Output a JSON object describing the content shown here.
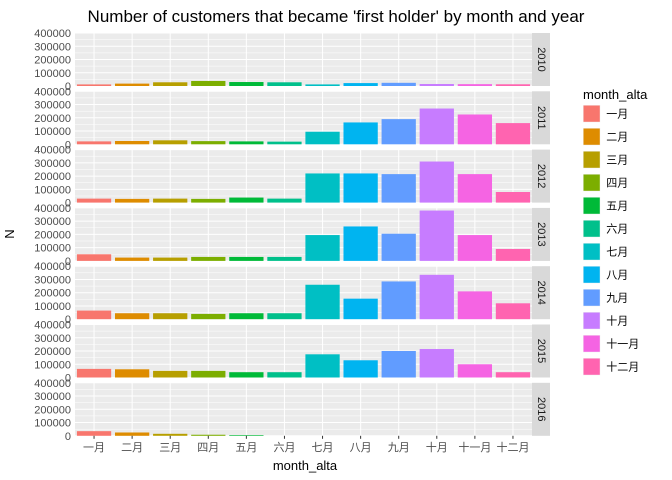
{
  "chart_data": {
    "type": "bar",
    "title": "Number of customers that became 'first holder' by month and year",
    "xlabel": "month_alta",
    "ylabel": "N",
    "categories": [
      "一月",
      "二月",
      "三月",
      "四月",
      "五月",
      "六月",
      "七月",
      "八月",
      "九月",
      "十月",
      "十一月",
      "十二月"
    ],
    "ylim": [
      0,
      400000
    ],
    "yticks": [
      "0",
      "100000",
      "200000",
      "300000",
      "400000"
    ],
    "legend": {
      "title": "month_alta",
      "placement": "right",
      "colors": [
        "#F8766D",
        "#DE8C00",
        "#B79F00",
        "#7CAE00",
        "#00BA38",
        "#00C08B",
        "#00BFC4",
        "#00B4F0",
        "#619CFF",
        "#C77CFF",
        "#F564E3",
        "#FF64B0"
      ]
    },
    "grid": true,
    "facets": [
      {
        "label": "2010",
        "values": [
          12000,
          18000,
          28000,
          38000,
          30000,
          28000,
          12000,
          22000,
          24000,
          15000,
          14000,
          13000
        ]
      },
      {
        "label": "2011",
        "values": [
          22000,
          25000,
          30000,
          24000,
          22000,
          20000,
          95000,
          165000,
          190000,
          270000,
          225000,
          160000
        ]
      },
      {
        "label": "2012",
        "values": [
          30000,
          28000,
          30000,
          28000,
          38000,
          30000,
          220000,
          220000,
          215000,
          310000,
          215000,
          80000
        ]
      },
      {
        "label": "2013",
        "values": [
          50000,
          25000,
          25000,
          30000,
          30000,
          30000,
          195000,
          260000,
          205000,
          380000,
          195000,
          90000
        ]
      },
      {
        "label": "2014",
        "values": [
          65000,
          45000,
          45000,
          40000,
          45000,
          45000,
          260000,
          155000,
          285000,
          335000,
          210000,
          120000
        ]
      },
      {
        "label": "2015",
        "values": [
          65000,
          62000,
          50000,
          50000,
          40000,
          40000,
          175000,
          130000,
          200000,
          215000,
          100000,
          40000
        ]
      },
      {
        "label": "2016",
        "values": [
          35000,
          25000,
          15000,
          8000,
          5000,
          0,
          0,
          0,
          0,
          0,
          0,
          0
        ]
      }
    ]
  }
}
